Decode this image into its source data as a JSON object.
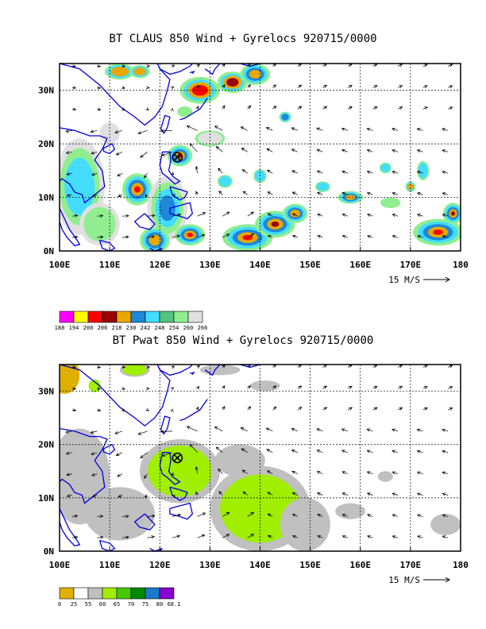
{
  "panels": [
    {
      "title": "BT CLAUS 850 Wind + Gyrelocs 920715/0000",
      "x_ticks": [
        "100E",
        "110E",
        "120E",
        "130E",
        "140E",
        "150E",
        "160E",
        "170E",
        "180"
      ],
      "y_ticks": [
        "30N",
        "20N",
        "10N",
        "0N"
      ],
      "vector_ref": "15 M/S",
      "colorbar_labels": [
        "188",
        "194",
        "200",
        "206",
        "218",
        "230",
        "242",
        "248",
        "254",
        "260",
        "266"
      ],
      "colorbar_colors": [
        "#ff00ff",
        "#ffff00",
        "#ff0000",
        "#990000",
        "#e8a800",
        "#1e88d8",
        "#44ddff",
        "#55c27f",
        "#90ee90",
        "#e0e0e0"
      ],
      "storm_marker": {
        "lon": 123.5,
        "lat": 17.5
      }
    },
    {
      "title": "BT Pwat 850 Wind + Gyrelocs 920715/0000",
      "x_ticks": [
        "100E",
        "110E",
        "120E",
        "130E",
        "140E",
        "150E",
        "160E",
        "170E",
        "180"
      ],
      "y_ticks": [
        "30N",
        "20N",
        "10N",
        "0N"
      ],
      "vector_ref": "15 M/S",
      "colorbar_labels": [
        "0",
        "25",
        "55",
        "60",
        "65",
        "70",
        "75",
        "80",
        "68.1"
      ],
      "colorbar_colors": [
        "#e0b000",
        "#ffffff",
        "#c0c0c0",
        "#a0ee00",
        "#44c800",
        "#008800",
        "#1e78c8",
        "#8800cc"
      ],
      "storm_marker": {
        "lon": 123.5,
        "lat": 17.5
      }
    }
  ]
}
